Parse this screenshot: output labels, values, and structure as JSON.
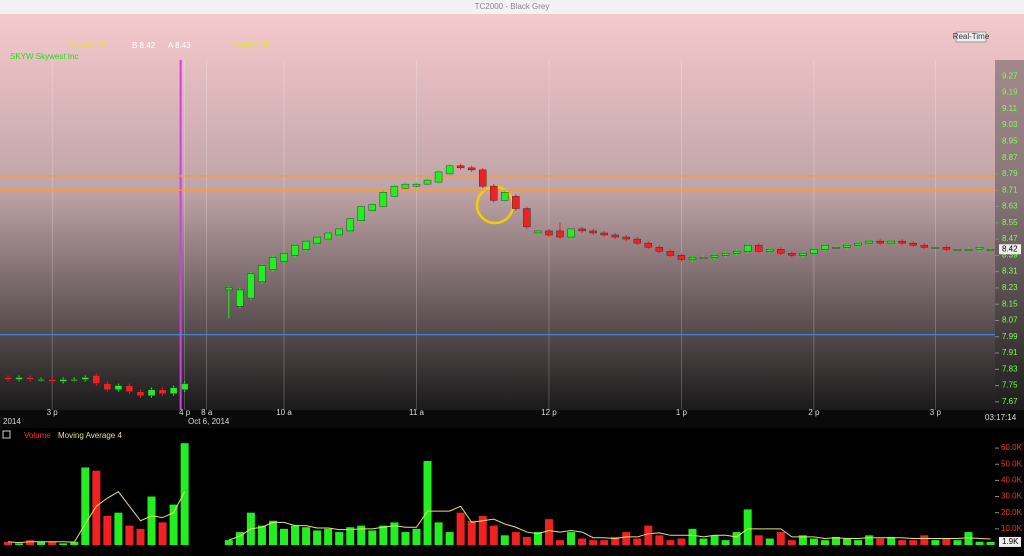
{
  "window": {
    "title": "TC2000 - Black Grey",
    "realtime_button": "Real-Time"
  },
  "quote": [
    "Open 8.23",
    "B 8.42",
    "A 8.43",
    "Vol 804.7K"
  ],
  "symbol": "SKYW Skywest Inc",
  "chart_data": [
    {
      "type": "candlestick",
      "categories": [
        null,
        null,
        null,
        null,
        "3 p",
        null,
        null,
        null,
        null,
        null,
        null,
        null,
        null,
        null,
        null,
        null,
        "4 p",
        null,
        "8 a",
        null,
        null,
        null,
        null,
        null,
        null,
        "10 a",
        null,
        null,
        null,
        null,
        null,
        null,
        null,
        null,
        null,
        null,
        null,
        "11 a",
        null,
        null,
        null,
        null,
        null,
        null,
        null,
        null,
        null,
        null,
        null,
        "12 p",
        null,
        null,
        null,
        null,
        null,
        null,
        null,
        null,
        null,
        null,
        null,
        "1 p",
        null,
        null,
        null,
        null,
        null,
        null,
        null,
        null,
        null,
        null,
        null,
        "2 p",
        null,
        null,
        null,
        null,
        null,
        null,
        null,
        null,
        null,
        null,
        "3 p",
        null,
        null,
        null,
        null,
        null
      ],
      "open": [
        7.79,
        7.78,
        7.79,
        7.78,
        7.78,
        7.77,
        7.78,
        7.78,
        7.8,
        7.76,
        7.73,
        7.75,
        7.72,
        7.7,
        7.73,
        7.71,
        7.73,
        null,
        null,
        null,
        8.22,
        8.14,
        8.18,
        8.26,
        8.32,
        8.36,
        8.39,
        8.42,
        8.45,
        8.47,
        8.49,
        8.51,
        8.56,
        8.61,
        8.63,
        8.68,
        8.72,
        8.73,
        8.74,
        8.75,
        8.79,
        8.83,
        8.82,
        8.81,
        8.73,
        8.66,
        8.68,
        8.62,
        8.5,
        8.51,
        8.51,
        8.48,
        8.52,
        8.51,
        8.5,
        8.49,
        8.48,
        8.47,
        8.45,
        8.43,
        8.41,
        8.39,
        8.37,
        8.38,
        8.38,
        8.39,
        8.4,
        8.41,
        8.44,
        8.41,
        8.42,
        8.4,
        8.39,
        8.4,
        8.42,
        8.43,
        8.43,
        8.44,
        8.45,
        8.46,
        8.45,
        8.46,
        8.45,
        8.44,
        8.43,
        8.43,
        8.42,
        8.42,
        8.42,
        8.42
      ],
      "high": [
        7.8,
        7.8,
        7.8,
        7.79,
        7.79,
        7.79,
        7.79,
        7.8,
        7.81,
        7.77,
        7.76,
        7.76,
        7.73,
        7.74,
        7.74,
        7.75,
        7.77,
        null,
        null,
        null,
        8.24,
        8.23,
        8.31,
        8.35,
        8.39,
        8.41,
        8.45,
        8.47,
        8.49,
        8.51,
        8.53,
        8.58,
        8.64,
        8.65,
        8.71,
        8.74,
        8.75,
        8.75,
        8.77,
        8.81,
        8.84,
        8.84,
        8.83,
        8.82,
        8.74,
        8.71,
        8.69,
        8.63,
        8.52,
        8.52,
        8.55,
        8.53,
        8.53,
        8.52,
        8.51,
        8.5,
        8.49,
        8.48,
        8.46,
        8.44,
        8.42,
        8.4,
        8.39,
        8.39,
        8.4,
        8.41,
        8.42,
        8.45,
        8.45,
        8.43,
        8.43,
        8.41,
        8.41,
        8.43,
        8.45,
        8.44,
        8.45,
        8.46,
        8.47,
        8.47,
        8.47,
        8.47,
        8.46,
        8.45,
        8.44,
        8.44,
        8.43,
        8.43,
        8.44,
        8.43
      ],
      "low": [
        7.77,
        7.77,
        7.77,
        7.77,
        7.76,
        7.76,
        7.77,
        7.77,
        7.75,
        7.72,
        7.72,
        7.71,
        7.69,
        7.69,
        7.7,
        7.7,
        7.72,
        null,
        null,
        null,
        8.08,
        8.13,
        8.17,
        8.25,
        8.31,
        8.35,
        8.38,
        8.41,
        8.44,
        8.46,
        8.48,
        8.5,
        8.55,
        8.6,
        8.62,
        8.67,
        8.71,
        8.72,
        8.73,
        8.74,
        8.78,
        8.81,
        8.8,
        8.72,
        8.65,
        8.65,
        8.61,
        8.52,
        8.49,
        8.48,
        8.47,
        8.47,
        8.5,
        8.49,
        8.48,
        8.47,
        8.46,
        8.44,
        8.42,
        8.4,
        8.38,
        8.36,
        8.36,
        8.37,
        8.37,
        8.38,
        8.39,
        8.4,
        8.4,
        8.4,
        8.39,
        8.38,
        8.38,
        8.39,
        8.41,
        8.42,
        8.42,
        8.43,
        8.44,
        8.44,
        8.44,
        8.44,
        8.43,
        8.42,
        8.42,
        8.41,
        8.41,
        8.41,
        8.41,
        8.41
      ],
      "close": [
        7.78,
        7.79,
        7.78,
        7.78,
        7.77,
        7.78,
        7.78,
        7.79,
        7.76,
        7.73,
        7.75,
        7.72,
        7.7,
        7.73,
        7.71,
        7.74,
        7.76,
        null,
        null,
        null,
        8.23,
        8.22,
        8.3,
        8.34,
        8.38,
        8.4,
        8.44,
        8.46,
        8.48,
        8.5,
        8.52,
        8.57,
        8.63,
        8.64,
        8.7,
        8.73,
        8.74,
        8.74,
        8.76,
        8.8,
        8.83,
        8.82,
        8.81,
        8.73,
        8.66,
        8.7,
        8.62,
        8.53,
        8.51,
        8.49,
        8.48,
        8.52,
        8.51,
        8.5,
        8.49,
        8.48,
        8.47,
        8.45,
        8.43,
        8.41,
        8.39,
        8.37,
        8.38,
        8.38,
        8.39,
        8.4,
        8.41,
        8.44,
        8.41,
        8.42,
        8.4,
        8.39,
        8.4,
        8.42,
        8.44,
        8.43,
        8.44,
        8.45,
        8.46,
        8.45,
        8.46,
        8.45,
        8.44,
        8.43,
        8.43,
        8.42,
        8.42,
        8.42,
        8.43,
        8.42
      ],
      "up_color": "#22ee22",
      "down_color": "#ee2222",
      "ylim": [
        7.63,
        9.35
      ],
      "yticks": [
        7.67,
        7.75,
        7.83,
        7.91,
        7.99,
        8.07,
        8.15,
        8.23,
        8.31,
        8.39,
        8.47,
        8.55,
        8.63,
        8.71,
        8.79,
        8.87,
        8.95,
        9.03,
        9.11,
        9.19,
        9.27
      ],
      "grid": "x",
      "last_price": 8.42,
      "date_label": "Oct 6, 2014",
      "prev_date_label": "2014",
      "time_label": "03:17:14",
      "reference_lines": [
        {
          "value": 8.0,
          "color": "#3a8ee6"
        },
        {
          "value": 8.78,
          "color": "#ff9a2e"
        },
        {
          "value": 8.71,
          "color": "#ff9a2e"
        }
      ],
      "session_break_color": "#d040e0"
    },
    {
      "type": "bar",
      "series": [
        {
          "name": "Volume",
          "color": "#ff2020",
          "values": [
            2000,
            1000,
            3000,
            2000,
            2000,
            1000,
            2000,
            48000,
            46000,
            18000,
            20000,
            12000,
            10000,
            30000,
            14000,
            25000,
            63000,
            null,
            null,
            null,
            3000,
            8000,
            20000,
            12000,
            15000,
            10000,
            12000,
            11000,
            9000,
            10000,
            8000,
            11000,
            12000,
            9000,
            12000,
            14000,
            8000,
            10000,
            52000,
            14000,
            8000,
            20000,
            15000,
            18000,
            12000,
            6000,
            8000,
            5000,
            8000,
            16000,
            3000,
            8000,
            4000,
            3000,
            3000,
            5000,
            8000,
            4000,
            12000,
            6000,
            3000,
            4000,
            10000,
            4000,
            6000,
            3000,
            8000,
            22000,
            6000,
            4000,
            8000,
            3000,
            6000,
            4000,
            3000,
            5000,
            4000,
            3000,
            6000,
            4000,
            5000,
            3000,
            3000,
            6000,
            3000,
            4000,
            3000,
            8000,
            2000,
            1900
          ]
        },
        {
          "name": "Moving Average 4",
          "color": "#e8e070",
          "values": [
            2000,
            1500,
            2000,
            2000,
            2000,
            2000,
            1800,
            13000,
            24000,
            29000,
            33000,
            24000,
            15000,
            18000,
            17000,
            20000,
            33000,
            null,
            null,
            null,
            3000,
            5500,
            10000,
            11000,
            14000,
            14000,
            12000,
            12000,
            10500,
            10500,
            9500,
            9500,
            10000,
            10000,
            11000,
            12000,
            11000,
            11000,
            21000,
            21000,
            21000,
            24000,
            14000,
            15000,
            16000,
            13000,
            11000,
            8000,
            7000,
            9000,
            8000,
            9000,
            8000,
            4500,
            4500,
            4000,
            5000,
            5000,
            7000,
            7500,
            6000,
            6000,
            6000,
            5000,
            6000,
            6000,
            5000,
            10000,
            10000,
            10000,
            10000,
            5000,
            5000,
            5000,
            4000,
            4500,
            4000,
            4000,
            4500,
            4500,
            4500,
            4500,
            4000,
            4000,
            4000,
            4000,
            4000,
            4500,
            4000,
            3700
          ]
        }
      ],
      "ylim": [
        0,
        65000
      ],
      "yticks": [
        {
          "value": 10000,
          "label": "10.0K"
        },
        {
          "value": 20000,
          "label": "20.0K"
        },
        {
          "value": 30000,
          "label": "30.0K"
        },
        {
          "value": 40000,
          "label": "40.0K"
        },
        {
          "value": 50000,
          "label": "50.0K"
        },
        {
          "value": 60000,
          "label": "60.0K"
        }
      ],
      "last_value": {
        "value": 1900,
        "label": "1.9K"
      }
    }
  ]
}
